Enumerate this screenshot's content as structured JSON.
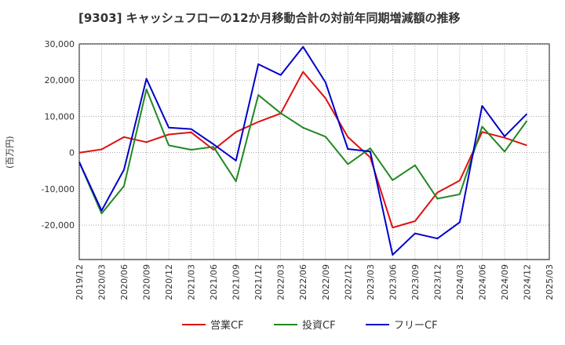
{
  "chart_data": {
    "type": "line",
    "title": "[9303]  キャッシュフローの12か月移動合計の対前年同期増減額の推移",
    "xlabel": "",
    "ylabel": "(百万円)",
    "ylim": [
      -29500,
      30000
    ],
    "yticks": [
      -20000,
      -10000,
      0,
      10000,
      20000,
      30000
    ],
    "ytick_labels": [
      "-20,000",
      "-10,000",
      "0",
      "10,000",
      "20,000",
      "30,000"
    ],
    "grid": true,
    "legend_position": "bottom",
    "x": [
      "2019/12",
      "2020/03",
      "2020/06",
      "2020/09",
      "2020/12",
      "2021/03",
      "2021/06",
      "2021/09",
      "2021/12",
      "2022/03",
      "2022/06",
      "2022/09",
      "2022/12",
      "2023/03",
      "2023/06",
      "2023/09",
      "2023/12",
      "2024/03",
      "2024/06",
      "2024/09",
      "2024/12",
      "2025/03"
    ],
    "series": [
      {
        "name": "営業CF",
        "color": "#dd1111",
        "values": [
          0,
          900,
          4300,
          2900,
          5000,
          5600,
          800,
          5700,
          8500,
          10800,
          22300,
          15000,
          4300,
          -1300,
          -20700,
          -18900,
          -11000,
          -7700,
          5700,
          4100,
          2000,
          null
        ]
      },
      {
        "name": "投資CF",
        "color": "#228822",
        "values": [
          -2600,
          -16800,
          -9200,
          17500,
          2000,
          800,
          1600,
          -7900,
          15900,
          10900,
          6900,
          4400,
          -3200,
          1200,
          -7600,
          -3500,
          -12700,
          -11500,
          7200,
          300,
          8800,
          null
        ]
      },
      {
        "name": "フリーCF",
        "color": "#0000cc",
        "values": [
          -2600,
          -16000,
          -4700,
          20400,
          6900,
          6500,
          2300,
          -2200,
          24400,
          21400,
          29200,
          19400,
          1000,
          300,
          -28200,
          -22300,
          -23700,
          -19200,
          12900,
          4500,
          10700,
          null
        ]
      }
    ]
  }
}
